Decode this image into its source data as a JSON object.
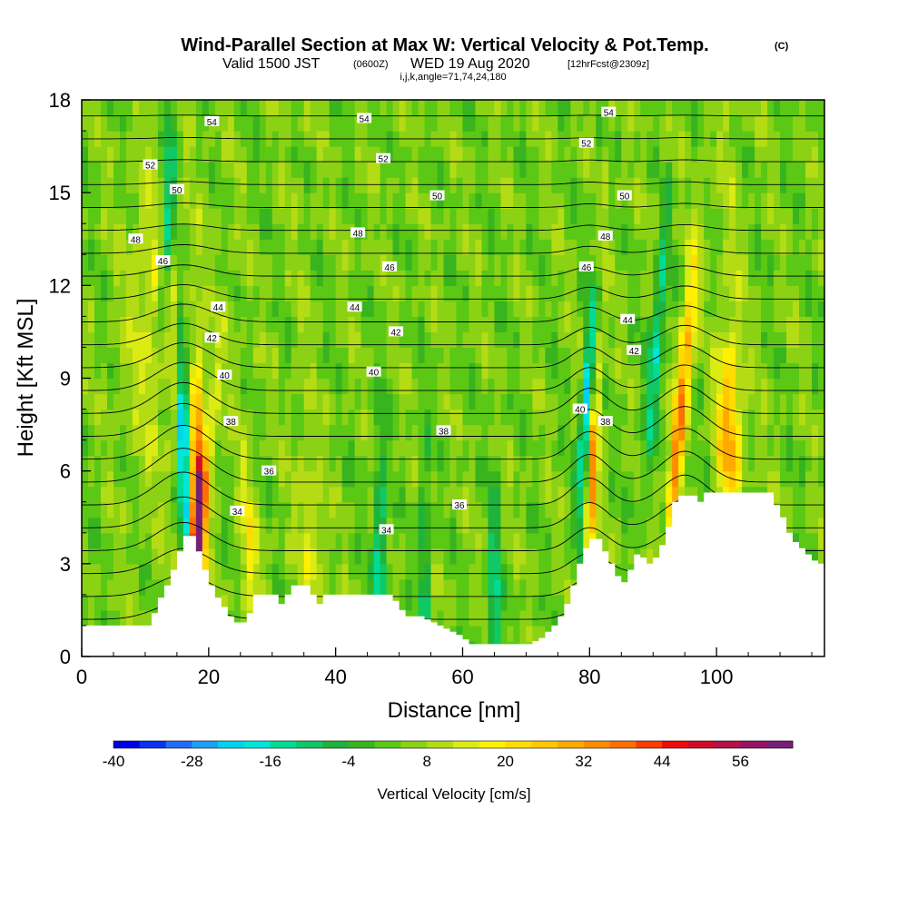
{
  "title": {
    "main": "Wind-Parallel Section at Max W: Vertical Velocity & Pot.Temp.",
    "copyright": "(C)",
    "line2_a": "Valid 1500 JST",
    "line2_b": "(0600Z)",
    "line2_c": "WED 19 Aug 2020",
    "line2_d": "[12hrFcst@2309z]",
    "line3": "i,j,k,angle=71,74,24,180"
  },
  "chart_data": {
    "type": "heatmap",
    "xlabel": "Distance [nm]",
    "ylabel": "Height [Kft MSL]",
    "xlim": [
      0,
      117
    ],
    "ylim": [
      0,
      18
    ],
    "x_ticks": [
      0,
      20,
      40,
      60,
      80,
      100
    ],
    "y_ticks": [
      0,
      3,
      6,
      9,
      12,
      15,
      18
    ],
    "x_tick_labels": [
      "0",
      "20",
      "40",
      "60",
      "80",
      "100"
    ],
    "y_tick_labels": [
      "0",
      "3",
      "6",
      "9",
      "12",
      "15",
      "18"
    ],
    "colorbar": {
      "label": "Vertical Velocity [cm/s]",
      "min": -40,
      "max": 64,
      "step": 4,
      "tick_labels": [
        "-40",
        "-28",
        "-16",
        "-4",
        "8",
        "20",
        "32",
        "44",
        "56"
      ],
      "tick_values": [
        -40,
        -28,
        -16,
        -4,
        8,
        20,
        32,
        44,
        56
      ],
      "colors": [
        "#0000e6",
        "#0a32f0",
        "#1e6ef5",
        "#1ea0f5",
        "#00d2f0",
        "#00e6dc",
        "#00dc96",
        "#10c864",
        "#1eb43c",
        "#38b41e",
        "#5ac814",
        "#8cd214",
        "#b4dc14",
        "#dceb14",
        "#fff000",
        "#ffdc00",
        "#ffc800",
        "#ffaa00",
        "#ff8c00",
        "#ff6e00",
        "#ff3c00",
        "#f00a0a",
        "#d20a28",
        "#b4104a",
        "#961464",
        "#781e78"
      ]
    },
    "terrain": [
      [
        0,
        1
      ],
      [
        5,
        1
      ],
      [
        6,
        1
      ],
      [
        7,
        1
      ],
      [
        8,
        1
      ],
      [
        9,
        1
      ],
      [
        10,
        1
      ],
      [
        11,
        1.4
      ],
      [
        12,
        1.9
      ],
      [
        13,
        2.3
      ],
      [
        14,
        2.8
      ],
      [
        15,
        3.4
      ],
      [
        16,
        3.9
      ],
      [
        17,
        3.9
      ],
      [
        18,
        3.4
      ],
      [
        19,
        2.8
      ],
      [
        20,
        2.3
      ],
      [
        21,
        1.9
      ],
      [
        22,
        1.6
      ],
      [
        23,
        1.3
      ],
      [
        24,
        1.1
      ],
      [
        25,
        1.1
      ],
      [
        26,
        1.4
      ],
      [
        27,
        2
      ],
      [
        30,
        2
      ],
      [
        31,
        1.7
      ],
      [
        32,
        2
      ],
      [
        33,
        2.3
      ],
      [
        35,
        2.3
      ],
      [
        36,
        2
      ],
      [
        37,
        1.7
      ],
      [
        38,
        2
      ],
      [
        42,
        2
      ],
      [
        48,
        2
      ],
      [
        49,
        1.8
      ],
      [
        50,
        1.5
      ],
      [
        51,
        1.3
      ],
      [
        53,
        1.3
      ],
      [
        55,
        1.1
      ],
      [
        57,
        0.9
      ],
      [
        59,
        0.7
      ],
      [
        61,
        0.4
      ],
      [
        70,
        0.4
      ],
      [
        72,
        0.6
      ],
      [
        73,
        0.8
      ],
      [
        74,
        1
      ],
      [
        75,
        1.3
      ],
      [
        76,
        1.7
      ],
      [
        77,
        2.3
      ],
      [
        78,
        3
      ],
      [
        79,
        3.5
      ],
      [
        80,
        3.8
      ],
      [
        81,
        3.8
      ],
      [
        82,
        3.4
      ],
      [
        83,
        3
      ],
      [
        84,
        2.6
      ],
      [
        85,
        2.4
      ],
      [
        86,
        2.8
      ],
      [
        87,
        3.3
      ],
      [
        88,
        3.2
      ],
      [
        89,
        3
      ],
      [
        90,
        3.2
      ],
      [
        91,
        3.6
      ],
      [
        92,
        4.2
      ],
      [
        93,
        5
      ],
      [
        94,
        5.2
      ],
      [
        96,
        5.2
      ],
      [
        97,
        5
      ],
      [
        98,
        5.3
      ],
      [
        104,
        5.3
      ],
      [
        108,
        5.3
      ],
      [
        109,
        4.9
      ],
      [
        110,
        4.5
      ],
      [
        111,
        4
      ],
      [
        112,
        3.7
      ],
      [
        113,
        3.5
      ],
      [
        114,
        3.3
      ],
      [
        115,
        3.1
      ],
      [
        116,
        3
      ],
      [
        117,
        3
      ]
    ],
    "updrafts": [
      {
        "x": 16.5,
        "h": 0.6,
        "slope": 0.55,
        "w": 1.4,
        "amp": 22
      },
      {
        "x": 18.3,
        "h": 0.6,
        "slope": 0.0,
        "w": 1.0,
        "amp": 48
      },
      {
        "x": 12.0,
        "h": 8.0,
        "slope": 0.0,
        "w": 5.0,
        "amp": 10
      },
      {
        "x": 27.5,
        "h": 0.0,
        "slope": -0.3,
        "w": 1.4,
        "amp": 11
      },
      {
        "x": 37.0,
        "h": 0.0,
        "slope": -0.2,
        "w": 2.0,
        "amp": 9
      },
      {
        "x": 79.0,
        "h": 0.0,
        "slope": 0.25,
        "w": 0.8,
        "amp": 28
      },
      {
        "x": 93.0,
        "h": 5.0,
        "slope": 0.45,
        "w": 1.0,
        "amp": 34
      },
      {
        "x": 102.0,
        "h": 0.0,
        "slope": 0.0,
        "w": 2.0,
        "amp": 22
      }
    ],
    "downdrafts": [
      {
        "x": 16.0,
        "h": 7.0,
        "slope": -0.1,
        "w": 0.8,
        "amp": -38
      },
      {
        "x": 13.5,
        "h": 14.0,
        "slope": 0.2,
        "w": 1.0,
        "amp": -22
      },
      {
        "x": 47.0,
        "h": 3.0,
        "slope": 0.0,
        "w": 1.0,
        "amp": -20
      },
      {
        "x": 54.0,
        "h": 3.0,
        "slope": 0.0,
        "w": 0.8,
        "amp": -16
      },
      {
        "x": 65.0,
        "h": 1.5,
        "slope": 0.0,
        "w": 1.0,
        "amp": -18
      },
      {
        "x": 79.5,
        "h": 8.0,
        "slope": 0.3,
        "w": 0.9,
        "amp": -26
      },
      {
        "x": 90.5,
        "h": 10.0,
        "slope": 0.4,
        "w": 0.9,
        "amp": -22
      }
    ],
    "contour_levels": [
      32,
      33,
      34,
      35,
      36,
      37,
      38,
      39,
      40,
      41,
      42,
      43,
      44,
      45,
      46,
      47,
      48,
      49,
      50,
      51,
      52,
      53,
      54,
      55
    ],
    "contour_labels": [
      {
        "text": "54",
        "x": 20.5,
        "y": 17.3
      },
      {
        "text": "54",
        "x": 44.5,
        "y": 17.4
      },
      {
        "text": "54",
        "x": 83.0,
        "y": 17.6
      },
      {
        "text": "52",
        "x": 10.8,
        "y": 15.9
      },
      {
        "text": "52",
        "x": 47.5,
        "y": 16.1
      },
      {
        "text": "52",
        "x": 79.5,
        "y": 16.6
      },
      {
        "text": "50",
        "x": 15.0,
        "y": 15.1
      },
      {
        "text": "50",
        "x": 56.0,
        "y": 14.9
      },
      {
        "text": "50",
        "x": 85.5,
        "y": 14.9
      },
      {
        "text": "48",
        "x": 8.5,
        "y": 13.5
      },
      {
        "text": "48",
        "x": 43.5,
        "y": 13.7
      },
      {
        "text": "48",
        "x": 82.5,
        "y": 13.6
      },
      {
        "text": "46",
        "x": 12.8,
        "y": 12.8
      },
      {
        "text": "46",
        "x": 48.5,
        "y": 12.6
      },
      {
        "text": "46",
        "x": 79.5,
        "y": 12.6
      },
      {
        "text": "44",
        "x": 21.5,
        "y": 11.3
      },
      {
        "text": "44",
        "x": 43.0,
        "y": 11.3
      },
      {
        "text": "44",
        "x": 86.0,
        "y": 10.9
      },
      {
        "text": "42",
        "x": 20.5,
        "y": 10.3
      },
      {
        "text": "42",
        "x": 49.5,
        "y": 10.5
      },
      {
        "text": "42",
        "x": 87.0,
        "y": 9.9
      },
      {
        "text": "40",
        "x": 22.5,
        "y": 9.1
      },
      {
        "text": "40",
        "x": 46.0,
        "y": 9.2
      },
      {
        "text": "40",
        "x": 78.5,
        "y": 8.0
      },
      {
        "text": "38",
        "x": 23.5,
        "y": 7.6
      },
      {
        "text": "38",
        "x": 57.0,
        "y": 7.3
      },
      {
        "text": "38",
        "x": 82.5,
        "y": 7.6
      },
      {
        "text": "36",
        "x": 29.5,
        "y": 6.0
      },
      {
        "text": "36",
        "x": 59.5,
        "y": 4.9
      },
      {
        "text": "34",
        "x": 24.5,
        "y": 4.7
      },
      {
        "text": "34",
        "x": 48.0,
        "y": 4.1
      }
    ]
  }
}
